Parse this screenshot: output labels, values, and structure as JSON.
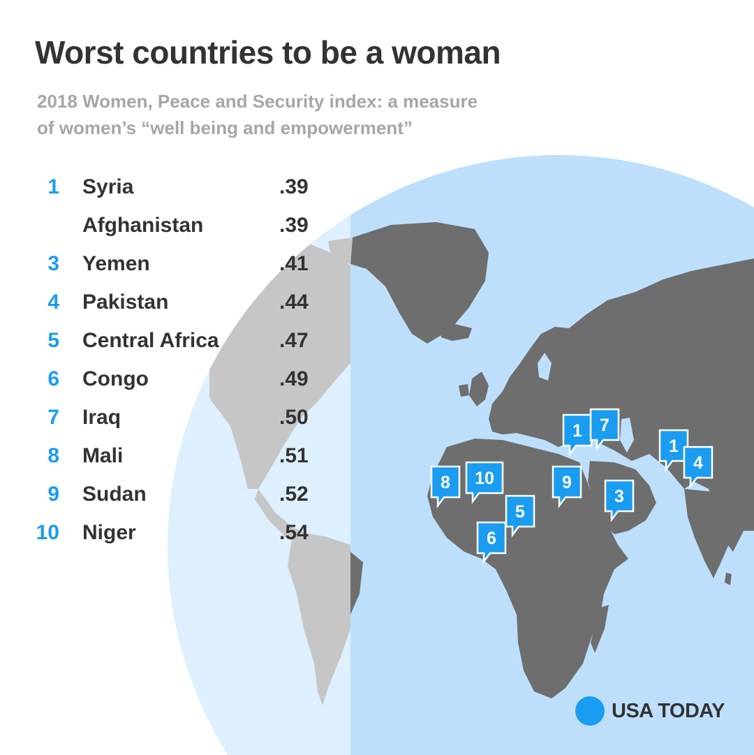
{
  "title": "Worst countries to be a woman",
  "subtitle": {
    "line1": "2018 Women, Peace and Security index: a measure",
    "line2": "of women’s “well being and empowerment”"
  },
  "ranking": [
    {
      "rank": "1",
      "country": "Syria",
      "score": ".39"
    },
    {
      "rank": "",
      "country": "Afghanistan",
      "score": ".39"
    },
    {
      "rank": "3",
      "country": "Yemen",
      "score": ".41"
    },
    {
      "rank": "4",
      "country": "Pakistan",
      "score": ".44"
    },
    {
      "rank": "5",
      "country": "Central Africa",
      "score": ".47"
    },
    {
      "rank": "6",
      "country": "Congo",
      "score": ".49"
    },
    {
      "rank": "7",
      "country": "Iraq",
      "score": ".50"
    },
    {
      "rank": "8",
      "country": "Mali",
      "score": ".51"
    },
    {
      "rank": "9",
      "country": "Sudan",
      "score": ".52"
    },
    {
      "rank": "10",
      "country": "Niger",
      "score": ".54"
    }
  ],
  "map_markers": [
    {
      "label": "1",
      "country": "Syria"
    },
    {
      "label": "7",
      "country": "Iraq"
    },
    {
      "label": "1",
      "country": "Afghanistan"
    },
    {
      "label": "4",
      "country": "Pakistan"
    },
    {
      "label": "8",
      "country": "Mali"
    },
    {
      "label": "10",
      "country": "Niger"
    },
    {
      "label": "9",
      "country": "Sudan"
    },
    {
      "label": "3",
      "country": "Yemen"
    },
    {
      "label": "5",
      "country": "Central Africa"
    },
    {
      "label": "6",
      "country": "Congo"
    }
  ],
  "logo": "USA TODAY",
  "colors": {
    "accent": "#1a9cf0",
    "ocean": "#bddffb",
    "ocean_far": "#deeffd",
    "land": "#6e6e6e",
    "land_far": "#c6c6c6",
    "text": "#333333",
    "subtitle": "#a6a6a6"
  }
}
